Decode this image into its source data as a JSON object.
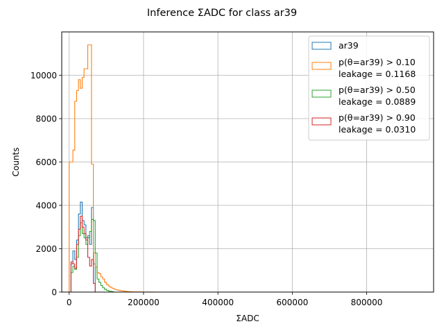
{
  "chart_data": {
    "type": "histogram",
    "title": "Inference ΣADC for class ar39",
    "xlabel": "ΣADC",
    "ylabel": "Counts",
    "xlim": [
      -20000,
      980000
    ],
    "ylim": [
      0,
      12000
    ],
    "x_ticks": [
      0,
      200000,
      400000,
      600000,
      800000
    ],
    "y_ticks": [
      0,
      2000,
      4000,
      6000,
      8000,
      10000
    ],
    "grid": true,
    "legend_position": "top-right",
    "bin_width": 5000,
    "series": [
      {
        "name": "ar39",
        "legend": [
          "ar39"
        ],
        "color": "#1f77b4",
        "x": [
          5000,
          10000,
          15000,
          20000,
          25000,
          30000,
          35000,
          40000,
          45000,
          50000,
          55000,
          60000,
          65000,
          70000
        ],
        "values": [
          1300,
          1900,
          1500,
          2400,
          3600,
          4150,
          3300,
          3100,
          2500,
          2600,
          2200,
          3900,
          1300,
          0
        ]
      },
      {
        "name": "p(θ=ar39) > 0.10",
        "legend": [
          "p(θ=ar39) > 0.10",
          "leakage = 0.1168"
        ],
        "color": "#ff7f0e",
        "x": [
          0,
          5000,
          10000,
          15000,
          20000,
          25000,
          30000,
          35000,
          40000,
          45000,
          50000,
          55000,
          60000,
          65000,
          70000,
          75000,
          80000,
          85000,
          90000,
          95000,
          100000,
          105000,
          110000,
          115000,
          120000,
          125000,
          130000,
          135000,
          140000,
          145000,
          150000,
          155000,
          160000,
          170000,
          180000,
          190000,
          200000,
          210000,
          220000,
          230000
        ],
        "values": [
          6000,
          6000,
          6550,
          8800,
          9300,
          9800,
          9400,
          9900,
          10300,
          10300,
          11400,
          11400,
          5900,
          1800,
          1150,
          900,
          850,
          700,
          600,
          450,
          350,
          280,
          220,
          180,
          140,
          110,
          90,
          70,
          55,
          45,
          35,
          25,
          20,
          12,
          8,
          6,
          4,
          3,
          2,
          0
        ]
      },
      {
        "name": "p(θ=ar39) > 0.50",
        "legend": [
          "p(θ=ar39) > 0.50",
          "leakage = 0.0889"
        ],
        "color": "#2ca02c",
        "x": [
          5000,
          10000,
          15000,
          20000,
          25000,
          30000,
          35000,
          40000,
          45000,
          50000,
          55000,
          60000,
          65000,
          70000,
          75000,
          80000,
          85000,
          90000,
          95000,
          100000,
          105000,
          110000,
          115000,
          120000
        ],
        "values": [
          900,
          1200,
          1050,
          1600,
          2600,
          3200,
          2700,
          2500,
          2200,
          2500,
          2800,
          3350,
          3300,
          1800,
          600,
          450,
          300,
          200,
          130,
          80,
          50,
          30,
          15,
          0
        ]
      },
      {
        "name": "p(θ=ar39) > 0.90",
        "legend": [
          "p(θ=ar39) > 0.90",
          "leakage = 0.0310"
        ],
        "color": "#d62728",
        "x": [
          5000,
          10000,
          15000,
          20000,
          25000,
          30000,
          35000,
          40000,
          45000,
          50000,
          55000,
          60000,
          65000,
          70000
        ],
        "values": [
          1400,
          1300,
          1100,
          2200,
          2900,
          3500,
          3000,
          2700,
          2400,
          1600,
          1200,
          1500,
          400,
          0
        ]
      }
    ]
  }
}
